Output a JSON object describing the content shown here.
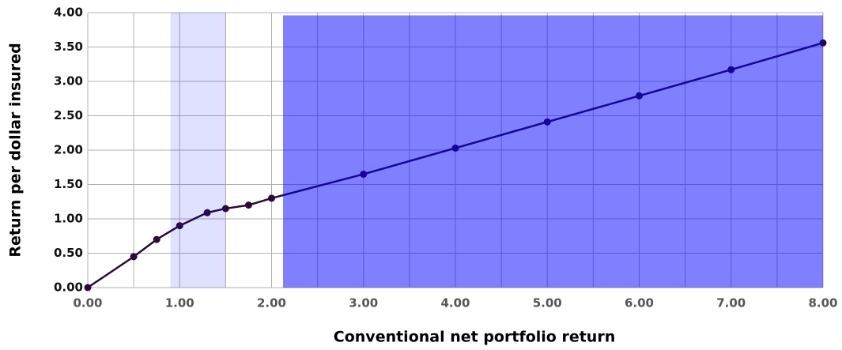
{
  "chart_data": {
    "type": "line",
    "xlabel": "Conventional net portfolio return",
    "ylabel": "Return per dollar insured",
    "x": [
      0,
      0.5,
      0.75,
      1,
      1.3,
      1.5,
      1.75,
      2,
      3,
      4,
      5,
      6,
      7,
      8
    ],
    "series": [
      {
        "color": "#2a0a3a",
        "values": [
          0,
          0.45,
          0.7,
          0.9,
          1.09,
          1.15,
          1.2,
          1.3,
          1.65,
          2.03,
          2.41,
          2.79,
          3.17,
          3.56
        ]
      }
    ],
    "xlim": [
      0,
      8
    ],
    "ylim": [
      0,
      4
    ],
    "xticks": [
      {
        "value": 0,
        "label": "0.00"
      },
      {
        "value": 1,
        "label": "1.00"
      },
      {
        "value": 2,
        "label": "2.00"
      },
      {
        "value": 3,
        "label": "3.00"
      },
      {
        "value": 4,
        "label": "4.00"
      },
      {
        "value": 5,
        "label": "5.00"
      },
      {
        "value": 6,
        "label": "6.00"
      },
      {
        "value": 7,
        "label": "7.00"
      },
      {
        "value": 8,
        "label": "8.00"
      }
    ],
    "x_minor_ticks": [
      0.5,
      1.5,
      2.5,
      3.5,
      4.5,
      5.5,
      6.5,
      7.5
    ],
    "yticks": [
      {
        "value": 0,
        "label": "0.00"
      },
      {
        "value": 0.5,
        "label": "0.50"
      },
      {
        "value": 1,
        "label": "1.00"
      },
      {
        "value": 1.5,
        "label": "1.50"
      },
      {
        "value": 2,
        "label": "2.00"
      },
      {
        "value": 2.5,
        "label": "2.50"
      },
      {
        "value": 3,
        "label": "3.00"
      },
      {
        "value": 3.5,
        "label": "3.50"
      },
      {
        "value": 4,
        "label": "4.00"
      }
    ],
    "grid": true,
    "shaded_regions": [
      {
        "x": [
          0.9,
          1.5
        ],
        "y": [
          0,
          4
        ],
        "color": "#0000ff",
        "opacity": 0.12
      },
      {
        "x": [
          2.125,
          8
        ],
        "y": [
          0,
          3.96
        ],
        "color": "#0000ff",
        "opacity": 0.5
      }
    ]
  }
}
